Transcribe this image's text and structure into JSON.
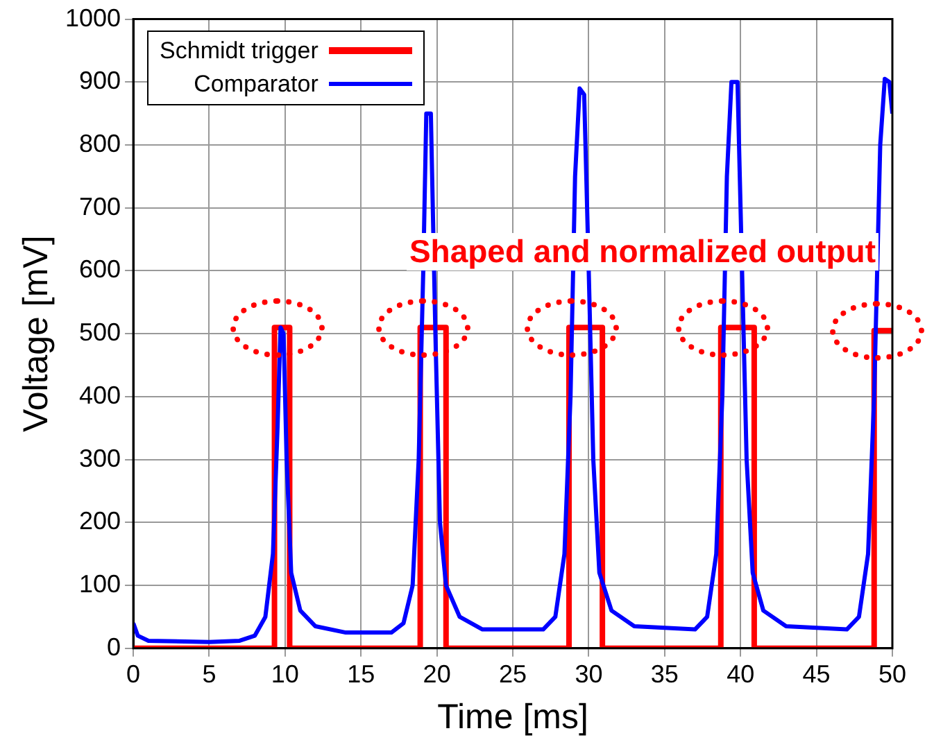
{
  "chart_data": {
    "type": "line",
    "xlabel": "Time [ms]",
    "ylabel": "Voltage [mV]",
    "xlim": [
      0,
      50
    ],
    "ylim": [
      0,
      1000
    ],
    "xticks": [
      0,
      5,
      10,
      15,
      20,
      25,
      30,
      35,
      40,
      45,
      50
    ],
    "yticks": [
      0,
      100,
      200,
      300,
      400,
      500,
      600,
      700,
      800,
      900,
      1000
    ],
    "grid": true,
    "legend": "top left",
    "marker": "none",
    "line_style": "solid",
    "annotations": [
      "Shaped and normalized output"
    ],
    "series": [
      {
        "name": "Schmidt trigger",
        "color": "#ff0000",
        "x": [
          0,
          9.3,
          9.3,
          10.3,
          10.3,
          18.9,
          18.9,
          20.6,
          20.6,
          28.7,
          28.7,
          30.9,
          30.9,
          38.7,
          38.7,
          40.9,
          40.9,
          48.8,
          48.8,
          50
        ],
        "values": [
          0,
          0,
          510,
          510,
          0,
          0,
          510,
          510,
          0,
          0,
          510,
          510,
          0,
          0,
          510,
          510,
          0,
          0,
          505,
          505
        ]
      },
      {
        "name": "Comparator",
        "color": "#0000ff",
        "x": [
          0,
          0.3,
          1,
          5,
          7,
          8,
          8.7,
          9.2,
          9.5,
          9.7,
          9.9,
          10.1,
          10.4,
          11,
          12,
          14,
          17,
          17.8,
          18.4,
          18.8,
          19.1,
          19.3,
          19.6,
          19.9,
          20.2,
          20.6,
          21.5,
          23,
          27,
          27.8,
          28.4,
          28.8,
          29.1,
          29.4,
          29.7,
          30,
          30.3,
          30.7,
          31.5,
          33,
          37,
          37.8,
          38.4,
          38.8,
          39.1,
          39.4,
          39.8,
          40.1,
          40.4,
          40.8,
          41.5,
          43,
          47,
          47.8,
          48.4,
          48.8,
          49.2,
          49.5,
          49.8,
          50
        ],
        "values": [
          40,
          20,
          12,
          10,
          12,
          20,
          50,
          150,
          350,
          510,
          500,
          300,
          120,
          60,
          35,
          25,
          25,
          40,
          100,
          300,
          600,
          850,
          850,
          500,
          200,
          100,
          50,
          30,
          30,
          50,
          150,
          400,
          750,
          890,
          880,
          600,
          300,
          120,
          60,
          35,
          30,
          50,
          150,
          400,
          750,
          900,
          900,
          600,
          300,
          120,
          60,
          35,
          30,
          50,
          150,
          400,
          800,
          905,
          900,
          850
        ]
      }
    ]
  }
}
